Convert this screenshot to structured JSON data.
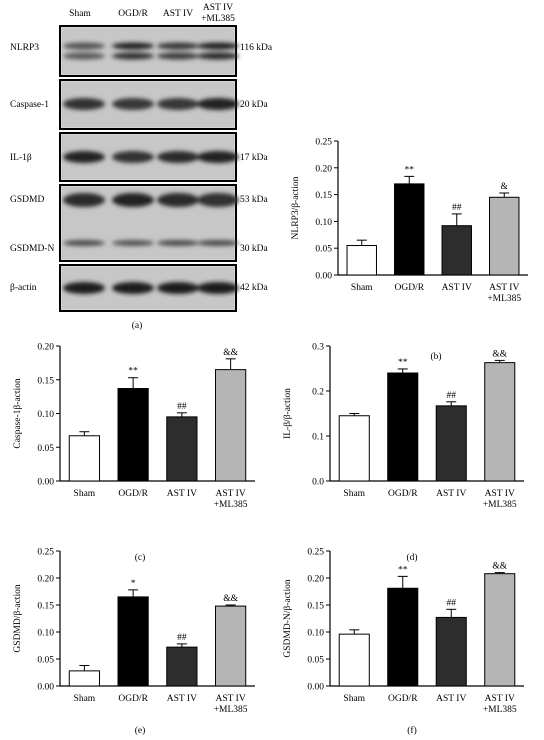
{
  "figure": {
    "panel_labels": [
      "(a)",
      "(b)",
      "(c)",
      "(d)",
      "(e)",
      "(f)"
    ]
  },
  "blot": {
    "lanes": [
      "Sham",
      "OGD/R",
      "AST IV",
      "AST IV",
      "+ML385"
    ],
    "proteins": [
      "NLRP3",
      "Caspase-1",
      "IL-1β",
      "GSDMD",
      "GSDMD-N",
      "β-actin"
    ],
    "sizes": [
      "116 kDa",
      "20 kDa",
      "17 kDa",
      "53 kDa",
      "30 kDa",
      "42 kDa"
    ]
  },
  "chart_data": [
    {
      "panel": "(b)",
      "type": "bar",
      "categories": [
        "Sham",
        "OGD/R",
        "AST IV",
        "AST IV\n+ML385"
      ],
      "values": [
        0.055,
        0.17,
        0.092,
        0.145
      ],
      "errors": [
        0.01,
        0.014,
        0.022,
        0.008
      ],
      "annotations": [
        "",
        "**",
        "##",
        "&"
      ],
      "ylabel": "NLRP3/β-action",
      "ylim": [
        0,
        0.25
      ],
      "yticks": [
        "0.00",
        "0.05",
        "0.10",
        "0.15",
        "0.20",
        "0.25"
      ],
      "bar_colors": [
        "#ffffff",
        "#000000",
        "#2d2d2d",
        "#b5b5b5"
      ]
    },
    {
      "panel": "(c)",
      "type": "bar",
      "categories": [
        "Sham",
        "OGD/R",
        "AST IV",
        "AST IV\n+ML385"
      ],
      "values": [
        0.067,
        0.137,
        0.095,
        0.165
      ],
      "errors": [
        0.006,
        0.016,
        0.006,
        0.016
      ],
      "annotations": [
        "",
        "**",
        "##",
        "&&"
      ],
      "ylabel": "Caspase-1β-action",
      "ylim": [
        0,
        0.2
      ],
      "yticks": [
        "0.00",
        "0.05",
        "0.10",
        "0.15",
        "0.20"
      ],
      "bar_colors": [
        "#ffffff",
        "#000000",
        "#2d2d2d",
        "#b5b5b5"
      ]
    },
    {
      "panel": "(d)",
      "type": "bar",
      "categories": [
        "Sham",
        "OGD/R",
        "AST IV",
        "AST IV\n+ML385"
      ],
      "values": [
        0.145,
        0.24,
        0.167,
        0.263
      ],
      "errors": [
        0.005,
        0.009,
        0.009,
        0.005
      ],
      "annotations": [
        "",
        "**",
        "##",
        "&&"
      ],
      "ylabel": "IL-β/β-action",
      "ylim": [
        0,
        0.3
      ],
      "yticks": [
        "0.0",
        "0.1",
        "0.2",
        "0.3"
      ],
      "bar_colors": [
        "#ffffff",
        "#000000",
        "#2d2d2d",
        "#b5b5b5"
      ]
    },
    {
      "panel": "(e)",
      "type": "bar",
      "categories": [
        "Sham",
        "OGD/R",
        "AST IV",
        "AST IV\n+ML385"
      ],
      "values": [
        0.028,
        0.165,
        0.072,
        0.148
      ],
      "errors": [
        0.01,
        0.013,
        0.006,
        0.002
      ],
      "annotations": [
        "",
        "*",
        "##",
        "&&"
      ],
      "ylabel": "GSDMD/β-action",
      "ylim": [
        0,
        0.25
      ],
      "yticks": [
        "0.00",
        "0.05",
        "0.10",
        "0.15",
        "0.20",
        "0.25"
      ],
      "bar_colors": [
        "#ffffff",
        "#000000",
        "#2d2d2d",
        "#b5b5b5"
      ]
    },
    {
      "panel": "(f)",
      "type": "bar",
      "categories": [
        "Sham",
        "OGD/R",
        "AST IV",
        "AST IV\n+ML385"
      ],
      "values": [
        0.096,
        0.181,
        0.127,
        0.208
      ],
      "errors": [
        0.008,
        0.022,
        0.015,
        0.002
      ],
      "annotations": [
        "",
        "**",
        "##",
        "&&"
      ],
      "ylabel": "GSDMD-N/β-action",
      "ylim": [
        0,
        0.25
      ],
      "yticks": [
        "0.00",
        "0.05",
        "0.10",
        "0.15",
        "0.20",
        "0.25"
      ],
      "bar_colors": [
        "#ffffff",
        "#000000",
        "#2d2d2d",
        "#b5b5b5"
      ]
    }
  ]
}
